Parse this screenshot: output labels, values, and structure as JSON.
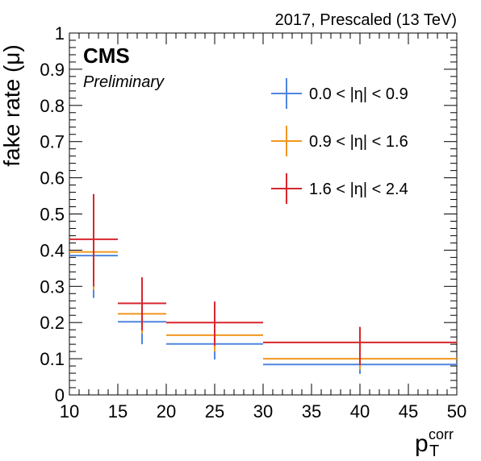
{
  "chart_data": {
    "type": "scatter",
    "top_right_label": "2017, Prescaled (13 TeV)",
    "experiment_label": "CMS",
    "status_label": "Preliminary",
    "ylabel": "fake rate (μ)",
    "xlabel": {
      "main": "p",
      "sub": "T",
      "sup": "corr"
    },
    "xlim": [
      10,
      50
    ],
    "ylim": [
      0,
      1
    ],
    "x_ticks": [
      10,
      15,
      20,
      25,
      30,
      35,
      40,
      45,
      50
    ],
    "y_ticks": [
      0,
      0.1,
      0.2,
      0.3,
      0.4,
      0.5,
      0.6,
      0.7,
      0.8,
      0.9,
      1
    ],
    "x_ticks_labels": [
      "10",
      "15",
      "20",
      "25",
      "30",
      "35",
      "40",
      "45",
      "50"
    ],
    "y_ticks_labels": [
      "0",
      "0.1",
      "0.2",
      "0.3",
      "0.4",
      "0.5",
      "0.6",
      "0.7",
      "0.8",
      "0.9",
      "1"
    ],
    "grid": false,
    "legend_position": "top-right",
    "series": [
      {
        "name": "0.0 < |η| < 0.9",
        "color": "#4f86e0",
        "points": [
          {
            "x": 12.5,
            "xlow": 10,
            "xhigh": 15,
            "y": 0.385,
            "ylow": 0.268,
            "yhigh": 0.394
          },
          {
            "x": 17.5,
            "xlow": 15,
            "xhigh": 20,
            "y": 0.202,
            "ylow": 0.14,
            "yhigh": 0.252
          },
          {
            "x": 25,
            "xlow": 20,
            "xhigh": 30,
            "y": 0.141,
            "ylow": 0.098,
            "yhigh": 0.175
          },
          {
            "x": 40,
            "xlow": 30,
            "xhigh": 50,
            "y": 0.084,
            "ylow": 0.058,
            "yhigh": 0.102
          }
        ]
      },
      {
        "name": "0.9 < |η| < 1.6",
        "color": "#f0961e",
        "points": [
          {
            "x": 12.5,
            "xlow": 10,
            "xhigh": 15,
            "y": 0.395,
            "ylow": 0.29,
            "yhigh": 0.43
          },
          {
            "x": 17.5,
            "xlow": 15,
            "xhigh": 20,
            "y": 0.224,
            "ylow": 0.17,
            "yhigh": 0.28
          },
          {
            "x": 25,
            "xlow": 20,
            "xhigh": 30,
            "y": 0.165,
            "ylow": 0.12,
            "yhigh": 0.21
          },
          {
            "x": 40,
            "xlow": 30,
            "xhigh": 50,
            "y": 0.1,
            "ylow": 0.07,
            "yhigh": 0.13
          }
        ]
      },
      {
        "name": "1.6 < |η| < 2.4",
        "color": "#d7262d",
        "points": [
          {
            "x": 12.5,
            "xlow": 10,
            "xhigh": 15,
            "y": 0.43,
            "ylow": 0.3,
            "yhigh": 0.555
          },
          {
            "x": 17.5,
            "xlow": 15,
            "xhigh": 20,
            "y": 0.253,
            "ylow": 0.178,
            "yhigh": 0.325
          },
          {
            "x": 25,
            "xlow": 20,
            "xhigh": 30,
            "y": 0.2,
            "ylow": 0.136,
            "yhigh": 0.258
          },
          {
            "x": 40,
            "xlow": 30,
            "xhigh": 50,
            "y": 0.145,
            "ylow": 0.082,
            "yhigh": 0.188
          }
        ]
      }
    ]
  }
}
